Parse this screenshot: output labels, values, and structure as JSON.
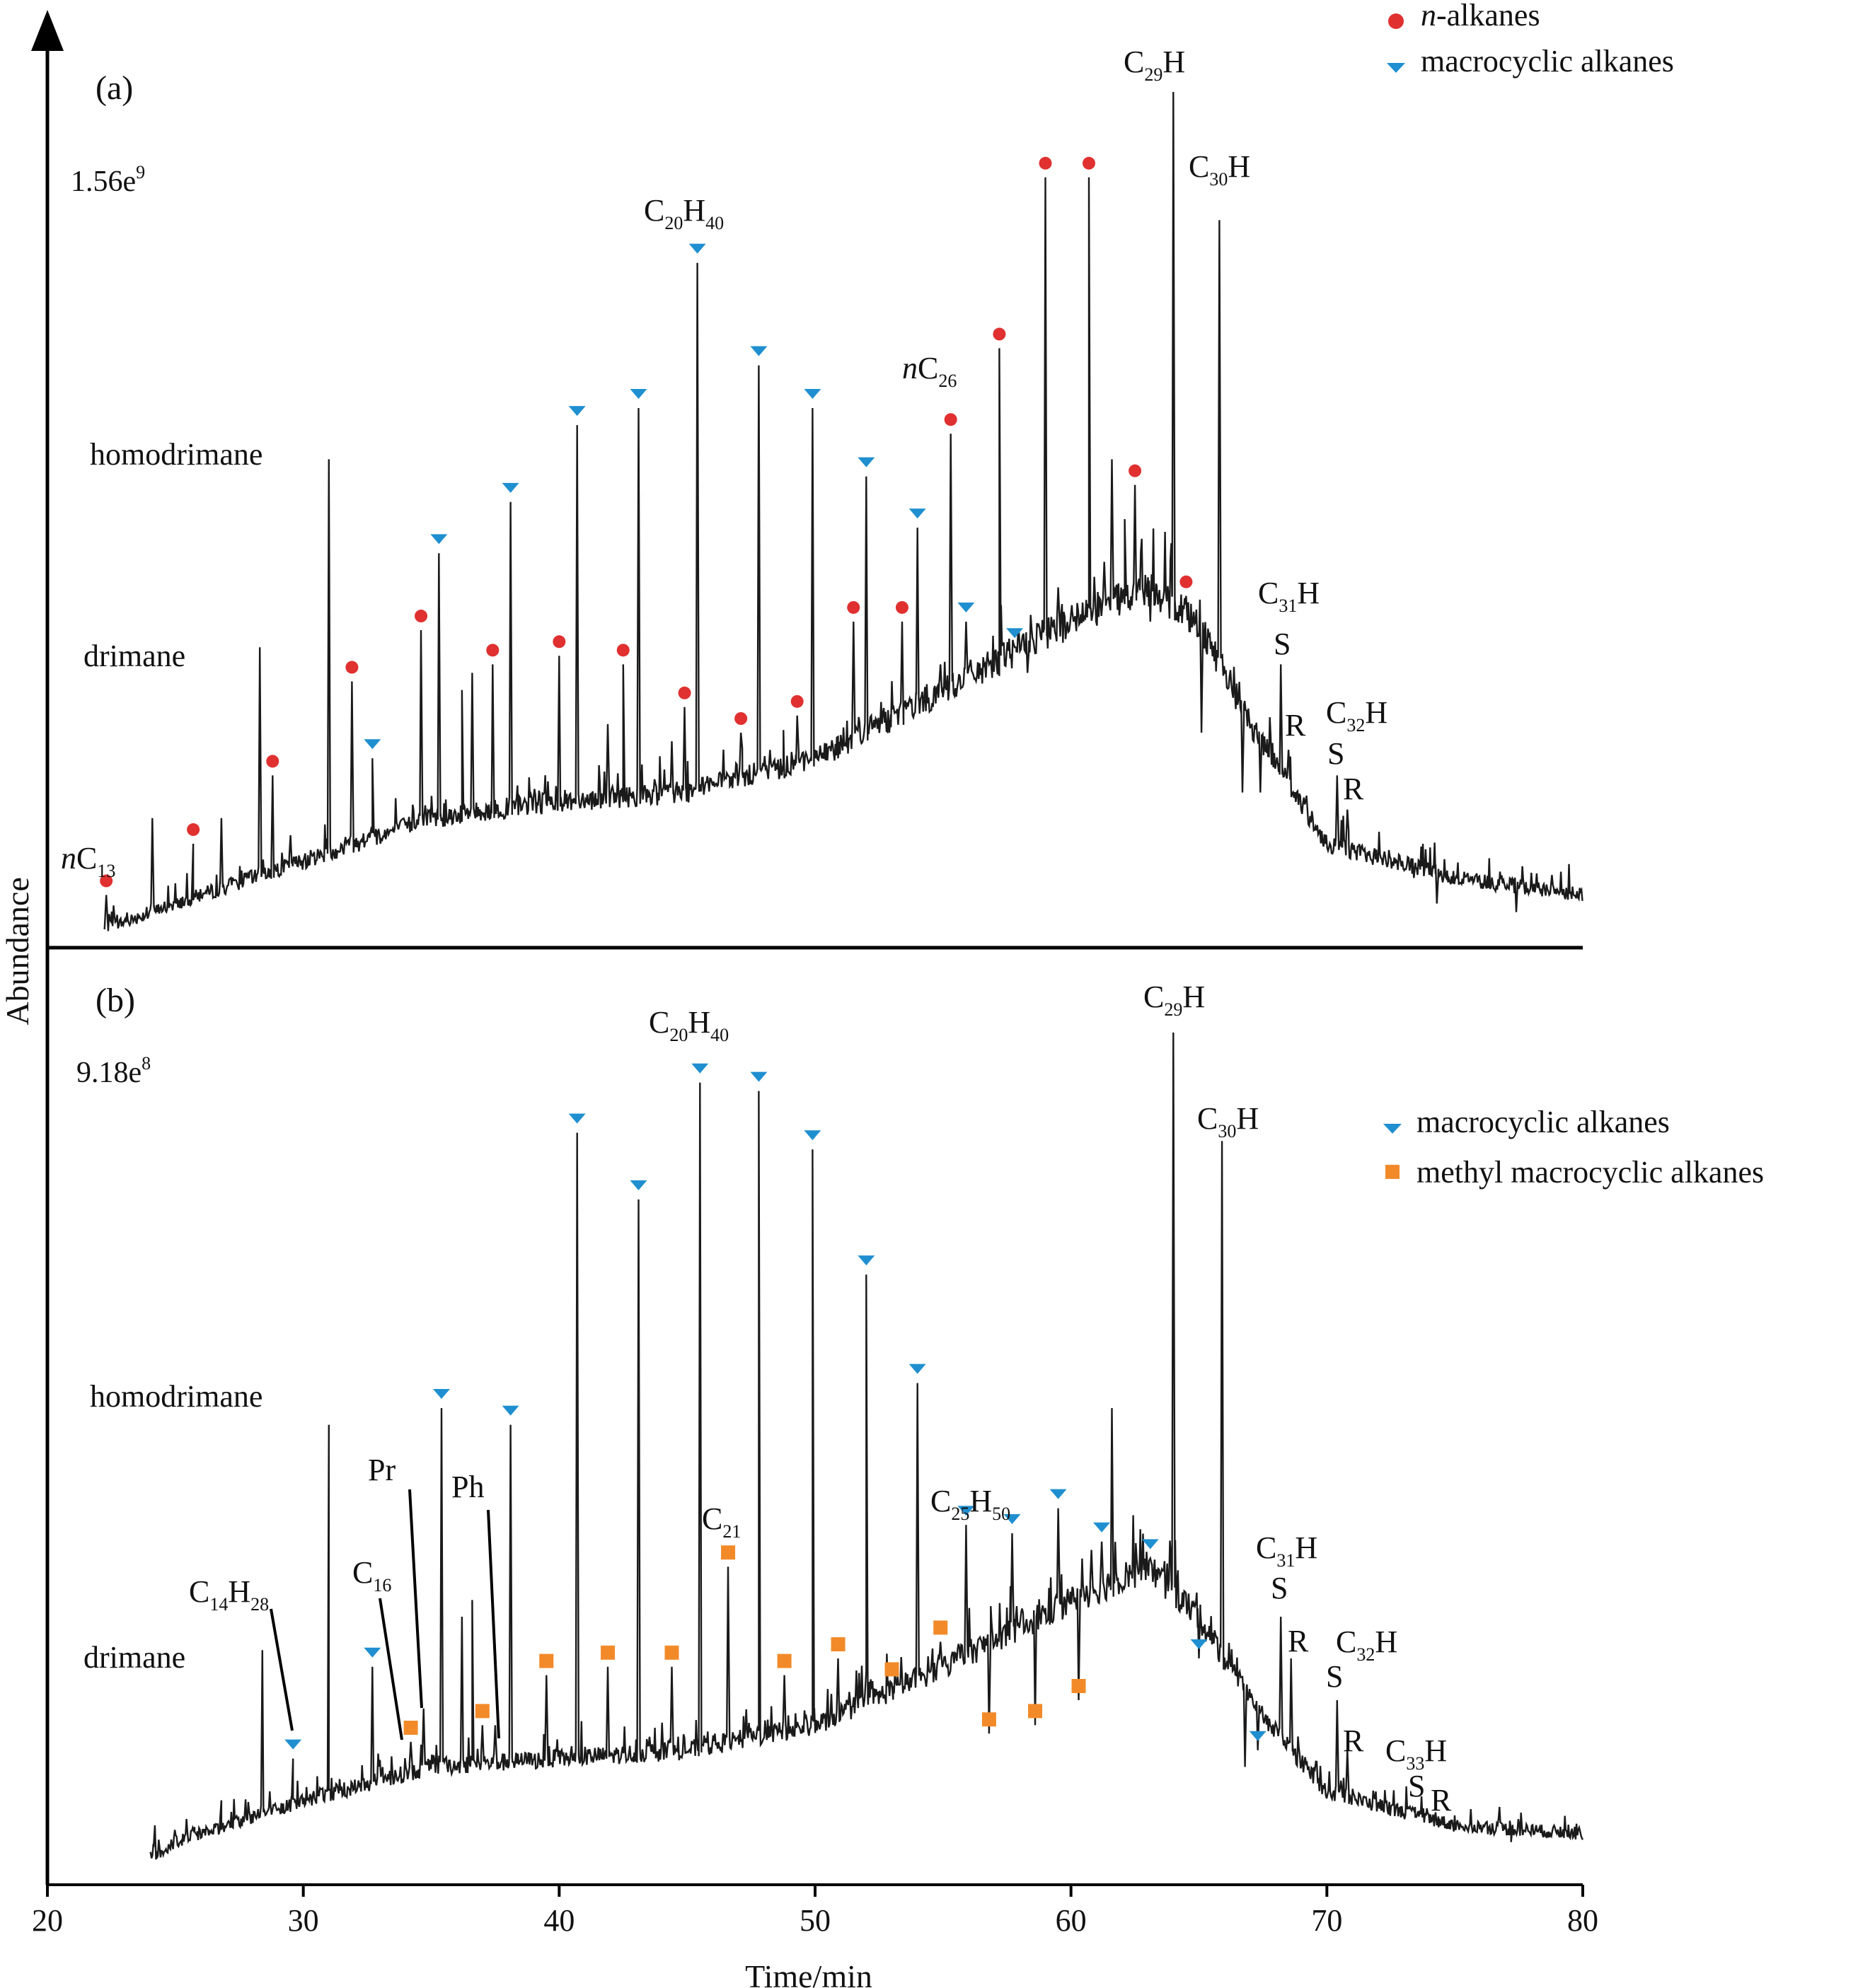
{
  "colors": {
    "n_alkane": "#e03030",
    "macrocyclic": "#1f8fd0",
    "methyl_macrocyclic": "#f28a2a",
    "trace": "#1a1a1a"
  },
  "chart_data": {
    "type": "line",
    "xlabel": "Time/min",
    "ylabel": "Abundance",
    "xlim": [
      20,
      80
    ],
    "x_ticks": [
      "20",
      "30",
      "40",
      "50",
      "60",
      "70",
      "80"
    ],
    "panels": [
      {
        "panel": "(a)",
        "scale": "1.56e",
        "scale_exp": "9",
        "legend": [
          {
            "marker": "circle",
            "color": "#e03030",
            "label": "n-alkanes",
            "italic_prefix": "n",
            "rest": "-alkanes"
          },
          {
            "marker": "triangle",
            "color": "#1f8fd0",
            "label": "macrocyclic alkanes"
          }
        ],
        "baseline": [
          [
            22.2,
            0.02
          ],
          [
            25,
            0.05
          ],
          [
            30,
            0.1
          ],
          [
            35,
            0.15
          ],
          [
            40,
            0.17
          ],
          [
            45,
            0.18
          ],
          [
            50,
            0.22
          ],
          [
            55,
            0.3
          ],
          [
            60,
            0.38
          ],
          [
            63,
            0.42
          ],
          [
            65,
            0.38
          ],
          [
            67,
            0.26
          ],
          [
            70,
            0.12
          ],
          [
            75,
            0.08
          ],
          [
            80,
            0.06
          ]
        ],
        "peaks": [
          {
            "x": 22.3,
            "y": 0.06,
            "m": "circle"
          },
          {
            "x": 24.1,
            "y": 0.15
          },
          {
            "x": 25.7,
            "y": 0.12,
            "m": "circle"
          },
          {
            "x": 26.8,
            "y": 0.15
          },
          {
            "x": 28.3,
            "y": 0.35
          },
          {
            "x": 28.8,
            "y": 0.2,
            "m": "circle"
          },
          {
            "x": 29.5,
            "y": 0.13
          },
          {
            "x": 31.0,
            "y": 0.57
          },
          {
            "x": 31.9,
            "y": 0.31,
            "m": "circle"
          },
          {
            "x": 32.7,
            "y": 0.22,
            "m": "triangle"
          },
          {
            "x": 34.6,
            "y": 0.37,
            "m": "circle"
          },
          {
            "x": 35.3,
            "y": 0.46,
            "m": "triangle"
          },
          {
            "x": 36.2,
            "y": 0.3
          },
          {
            "x": 36.6,
            "y": 0.32
          },
          {
            "x": 37.4,
            "y": 0.33,
            "m": "circle"
          },
          {
            "x": 38.1,
            "y": 0.52,
            "m": "triangle"
          },
          {
            "x": 40.0,
            "y": 0.34,
            "m": "circle"
          },
          {
            "x": 40.7,
            "y": 0.61,
            "m": "triangle"
          },
          {
            "x": 41.9,
            "y": 0.26
          },
          {
            "x": 42.5,
            "y": 0.33,
            "m": "circle"
          },
          {
            "x": 43.1,
            "y": 0.63,
            "m": "triangle"
          },
          {
            "x": 44.4,
            "y": 0.24
          },
          {
            "x": 44.9,
            "y": 0.28,
            "m": "circle"
          },
          {
            "x": 45.4,
            "y": 0.8,
            "m": "triangle",
            "label": "C20H40"
          },
          {
            "x": 46.6,
            "y": 0.2
          },
          {
            "x": 47.1,
            "y": 0.25,
            "m": "circle"
          },
          {
            "x": 47.8,
            "y": 0.68,
            "m": "triangle"
          },
          {
            "x": 48.7,
            "y": 0.2
          },
          {
            "x": 49.3,
            "y": 0.27,
            "m": "circle"
          },
          {
            "x": 49.9,
            "y": 0.63,
            "m": "triangle"
          },
          {
            "x": 50.9,
            "y": 0.22
          },
          {
            "x": 51.5,
            "y": 0.38,
            "m": "circle"
          },
          {
            "x": 52.0,
            "y": 0.55,
            "m": "triangle"
          },
          {
            "x": 52.9,
            "y": 0.25
          },
          {
            "x": 53.4,
            "y": 0.38,
            "m": "circle"
          },
          {
            "x": 54.0,
            "y": 0.49,
            "m": "triangle"
          },
          {
            "x": 54.9,
            "y": 0.33
          },
          {
            "x": 55.3,
            "y": 0.6,
            "m": "circle",
            "label": "nC26"
          },
          {
            "x": 55.9,
            "y": 0.38,
            "m": "triangle"
          },
          {
            "x": 56.8,
            "y": 0.33
          },
          {
            "x": 57.2,
            "y": 0.7,
            "m": "circle"
          },
          {
            "x": 57.8,
            "y": 0.35,
            "m": "triangle"
          },
          {
            "x": 58.3,
            "y": 0.32
          },
          {
            "x": 59.0,
            "y": 0.9,
            "m": "circle"
          },
          {
            "x": 59.5,
            "y": 0.42
          },
          {
            "x": 60.1,
            "y": 0.38
          },
          {
            "x": 60.7,
            "y": 0.9,
            "m": "circle"
          },
          {
            "x": 61.3,
            "y": 0.45
          },
          {
            "x": 61.6,
            "y": 0.57
          },
          {
            "x": 62.1,
            "y": 0.5
          },
          {
            "x": 62.5,
            "y": 0.54,
            "m": "circle"
          },
          {
            "x": 63.1,
            "y": 0.38
          },
          {
            "x": 63.4,
            "y": 0.4
          },
          {
            "x": 64.0,
            "y": 1.0,
            "label": "C29H"
          },
          {
            "x": 64.5,
            "y": 0.41,
            "m": "circle"
          },
          {
            "x": 65.1,
            "y": 0.25
          },
          {
            "x": 65.8,
            "y": 0.85,
            "label": "C30H"
          },
          {
            "x": 66.7,
            "y": 0.18
          },
          {
            "x": 67.4,
            "y": 0.18
          },
          {
            "x": 68.2,
            "y": 0.33,
            "label": "C31H S"
          },
          {
            "x": 68.5,
            "y": 0.23,
            "label": "R"
          },
          {
            "x": 70.4,
            "y": 0.2,
            "label": "C32H S"
          },
          {
            "x": 70.8,
            "y": 0.16,
            "label": "R"
          },
          {
            "x": 73.4,
            "y": 0.08
          },
          {
            "x": 74.3,
            "y": 0.05
          },
          {
            "x": 77.4,
            "y": 0.04
          }
        ],
        "labels": {
          "homodrimane": "homodrimane",
          "drimane": "drimane",
          "nC13": "nC13",
          "C20H40": "C20H40",
          "nC26": "nC26",
          "C29H": "C29H",
          "C30H": "C30H",
          "C31H": "C31H",
          "C32H": "C32H",
          "S": "S",
          "R": "R"
        }
      },
      {
        "panel": "(b)",
        "scale": "9.18e",
        "scale_exp": "8",
        "legend": [
          {
            "marker": "triangle",
            "color": "#1f8fd0",
            "label": "macrocyclic alkanes"
          },
          {
            "marker": "square",
            "color": "#f28a2a",
            "label": "methyl macrocyclic alkanes"
          }
        ],
        "baseline": [
          [
            24.0,
            0.01
          ],
          [
            25,
            0.03
          ],
          [
            30,
            0.08
          ],
          [
            35,
            0.12
          ],
          [
            40,
            0.13
          ],
          [
            45,
            0.14
          ],
          [
            50,
            0.17
          ],
          [
            55,
            0.24
          ],
          [
            60,
            0.32
          ],
          [
            63,
            0.36
          ],
          [
            65,
            0.3
          ],
          [
            67,
            0.2
          ],
          [
            70,
            0.09
          ],
          [
            75,
            0.05
          ],
          [
            80,
            0.04
          ]
        ],
        "peaks": [
          {
            "x": 24.2,
            "y": 0.05
          },
          {
            "x": 25.8,
            "y": 0.04
          },
          {
            "x": 26.8,
            "y": 0.08
          },
          {
            "x": 28.4,
            "y": 0.26,
            "label": "C14H28"
          },
          {
            "x": 29.6,
            "y": 0.13,
            "m": "triangle"
          },
          {
            "x": 31.0,
            "y": 0.53
          },
          {
            "x": 32.7,
            "y": 0.24,
            "m": "triangle"
          },
          {
            "x": 34.2,
            "y": 0.15,
            "m": "square",
            "label": "C16"
          },
          {
            "x": 34.7,
            "y": 0.19,
            "label": "Pr"
          },
          {
            "x": 35.4,
            "y": 0.55,
            "m": "triangle"
          },
          {
            "x": 36.2,
            "y": 0.3
          },
          {
            "x": 36.6,
            "y": 0.32
          },
          {
            "x": 37.0,
            "y": 0.17,
            "m": "square"
          },
          {
            "x": 37.5,
            "y": 0.17,
            "label": "Ph"
          },
          {
            "x": 38.1,
            "y": 0.53,
            "m": "triangle"
          },
          {
            "x": 39.5,
            "y": 0.23,
            "m": "square"
          },
          {
            "x": 40.7,
            "y": 0.88,
            "m": "triangle"
          },
          {
            "x": 41.9,
            "y": 0.24,
            "m": "square"
          },
          {
            "x": 43.1,
            "y": 0.8,
            "m": "triangle"
          },
          {
            "x": 44.4,
            "y": 0.24,
            "m": "square"
          },
          {
            "x": 45.5,
            "y": 0.94,
            "m": "triangle",
            "label": "C20H40"
          },
          {
            "x": 46.6,
            "y": 0.36,
            "m": "square",
            "label": "C21"
          },
          {
            "x": 47.8,
            "y": 0.93,
            "m": "triangle"
          },
          {
            "x": 48.8,
            "y": 0.23,
            "m": "square"
          },
          {
            "x": 49.9,
            "y": 0.86,
            "m": "triangle"
          },
          {
            "x": 50.9,
            "y": 0.25,
            "m": "square"
          },
          {
            "x": 52.0,
            "y": 0.71,
            "m": "triangle"
          },
          {
            "x": 53.0,
            "y": 0.22,
            "m": "square"
          },
          {
            "x": 54.0,
            "y": 0.58,
            "m": "triangle"
          },
          {
            "x": 54.9,
            "y": 0.27,
            "m": "square"
          },
          {
            "x": 55.9,
            "y": 0.41,
            "m": "triangle",
            "label": "C25H50"
          },
          {
            "x": 56.8,
            "y": 0.16,
            "m": "square"
          },
          {
            "x": 57.7,
            "y": 0.4,
            "m": "triangle"
          },
          {
            "x": 58.6,
            "y": 0.17,
            "m": "square"
          },
          {
            "x": 59.5,
            "y": 0.43,
            "m": "triangle"
          },
          {
            "x": 60.3,
            "y": 0.2,
            "m": "square"
          },
          {
            "x": 60.8,
            "y": 0.38
          },
          {
            "x": 61.2,
            "y": 0.39,
            "m": "triangle"
          },
          {
            "x": 61.6,
            "y": 0.55
          },
          {
            "x": 63.1,
            "y": 0.37,
            "m": "triangle"
          },
          {
            "x": 64.0,
            "y": 1.0,
            "label": "C29H"
          },
          {
            "x": 65.0,
            "y": 0.25,
            "m": "triangle"
          },
          {
            "x": 65.9,
            "y": 0.87,
            "label": "C30H"
          },
          {
            "x": 66.8,
            "y": 0.12
          },
          {
            "x": 67.3,
            "y": 0.14,
            "m": "triangle"
          },
          {
            "x": 68.2,
            "y": 0.3,
            "label": "C31H S"
          },
          {
            "x": 68.6,
            "y": 0.25,
            "label": "R"
          },
          {
            "x": 70.4,
            "y": 0.2,
            "label": "C32H S"
          },
          {
            "x": 70.8,
            "y": 0.14,
            "label": "R"
          },
          {
            "x": 73.5,
            "y": 0.06,
            "label": "C33H S"
          },
          {
            "x": 74.3,
            "y": 0.05,
            "label": "R"
          },
          {
            "x": 77.2,
            "y": 0.03
          }
        ],
        "labels": {
          "homodrimane": "homodrimane",
          "drimane": "drimane",
          "C14H28": "C14H28",
          "C16": "C16",
          "Pr": "Pr",
          "Ph": "Ph",
          "C20H40": "C20H40",
          "C21": "C21",
          "C25H50": "C25H50",
          "C29H": "C29H",
          "C30H": "C30H",
          "C31H": "C31H",
          "C32H": "C32H",
          "C33H": "C33H",
          "S": "S",
          "R": "R"
        }
      }
    ]
  }
}
